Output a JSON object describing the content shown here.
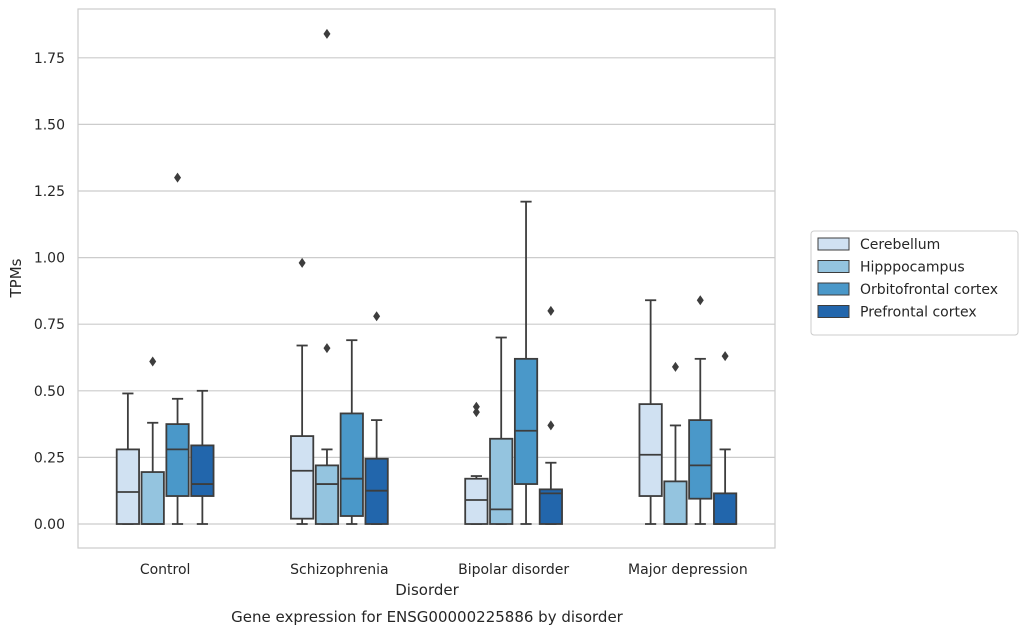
{
  "chart_data": {
    "type": "box",
    "title": "",
    "caption": "Gene expression for ENSG00000225886 by disorder",
    "xlabel": "Disorder",
    "ylabel": "TPMs",
    "ylim": [
      -0.09,
      1.94
    ],
    "yticks": [
      "0.00",
      "0.25",
      "0.50",
      "0.75",
      "1.00",
      "1.25",
      "1.50",
      "1.75"
    ],
    "categories": [
      "Control",
      "Schizophrenia",
      "Bipolar disorder",
      "Major depression"
    ],
    "grid": true,
    "legend_position": "right",
    "series": [
      {
        "name": "Cerebellum",
        "color": "#d0e1f2",
        "boxes": [
          {
            "q1": 0.0,
            "median": 0.12,
            "q3": 0.28,
            "whislo": 0.0,
            "whishi": 0.49,
            "fliers": []
          },
          {
            "q1": 0.02,
            "median": 0.2,
            "q3": 0.33,
            "whislo": 0.0,
            "whishi": 0.67,
            "fliers": [
              0.98
            ]
          },
          {
            "q1": 0.0,
            "median": 0.09,
            "q3": 0.17,
            "whislo": 0.0,
            "whishi": 0.18,
            "fliers": [
              0.42,
              0.44
            ]
          },
          {
            "q1": 0.105,
            "median": 0.26,
            "q3": 0.45,
            "whislo": 0.0,
            "whishi": 0.84,
            "fliers": []
          }
        ]
      },
      {
        "name": "Hipppocampus",
        "color": "#94c4df",
        "boxes": [
          {
            "q1": 0.0,
            "median": 0.0,
            "q3": 0.195,
            "whislo": 0.0,
            "whishi": 0.38,
            "fliers": [
              0.61
            ]
          },
          {
            "q1": 0.0,
            "median": 0.15,
            "q3": 0.22,
            "whislo": 0.0,
            "whishi": 0.28,
            "fliers": [
              0.66,
              1.84
            ]
          },
          {
            "q1": 0.0,
            "median": 0.055,
            "q3": 0.32,
            "whislo": 0.0,
            "whishi": 0.7,
            "fliers": []
          },
          {
            "q1": 0.0,
            "median": 0.0,
            "q3": 0.16,
            "whislo": 0.0,
            "whishi": 0.37,
            "fliers": [
              0.59
            ]
          }
        ]
      },
      {
        "name": "Orbitofrontal cortex",
        "color": "#4a98c9",
        "boxes": [
          {
            "q1": 0.105,
            "median": 0.28,
            "q3": 0.375,
            "whislo": 0.0,
            "whishi": 0.47,
            "fliers": [
              1.3
            ]
          },
          {
            "q1": 0.03,
            "median": 0.17,
            "q3": 0.415,
            "whislo": 0.0,
            "whishi": 0.69,
            "fliers": []
          },
          {
            "q1": 0.15,
            "median": 0.35,
            "q3": 0.62,
            "whislo": 0.0,
            "whishi": 1.21,
            "fliers": []
          },
          {
            "q1": 0.095,
            "median": 0.22,
            "q3": 0.39,
            "whislo": 0.0,
            "whishi": 0.62,
            "fliers": [
              0.84
            ]
          }
        ]
      },
      {
        "name": "Prefrontal cortex",
        "color": "#2266ac",
        "boxes": [
          {
            "q1": 0.105,
            "median": 0.15,
            "q3": 0.295,
            "whislo": 0.0,
            "whishi": 0.5,
            "fliers": []
          },
          {
            "q1": 0.0,
            "median": 0.125,
            "q3": 0.245,
            "whislo": 0.0,
            "whishi": 0.39,
            "fliers": [
              0.78
            ]
          },
          {
            "q1": 0.0,
            "median": 0.115,
            "q3": 0.13,
            "whislo": 0.0,
            "whishi": 0.23,
            "fliers": [
              0.37,
              0.8
            ]
          },
          {
            "q1": 0.0,
            "median": 0.0,
            "q3": 0.115,
            "whislo": 0.0,
            "whishi": 0.28,
            "fliers": [
              0.63
            ]
          }
        ]
      }
    ]
  }
}
